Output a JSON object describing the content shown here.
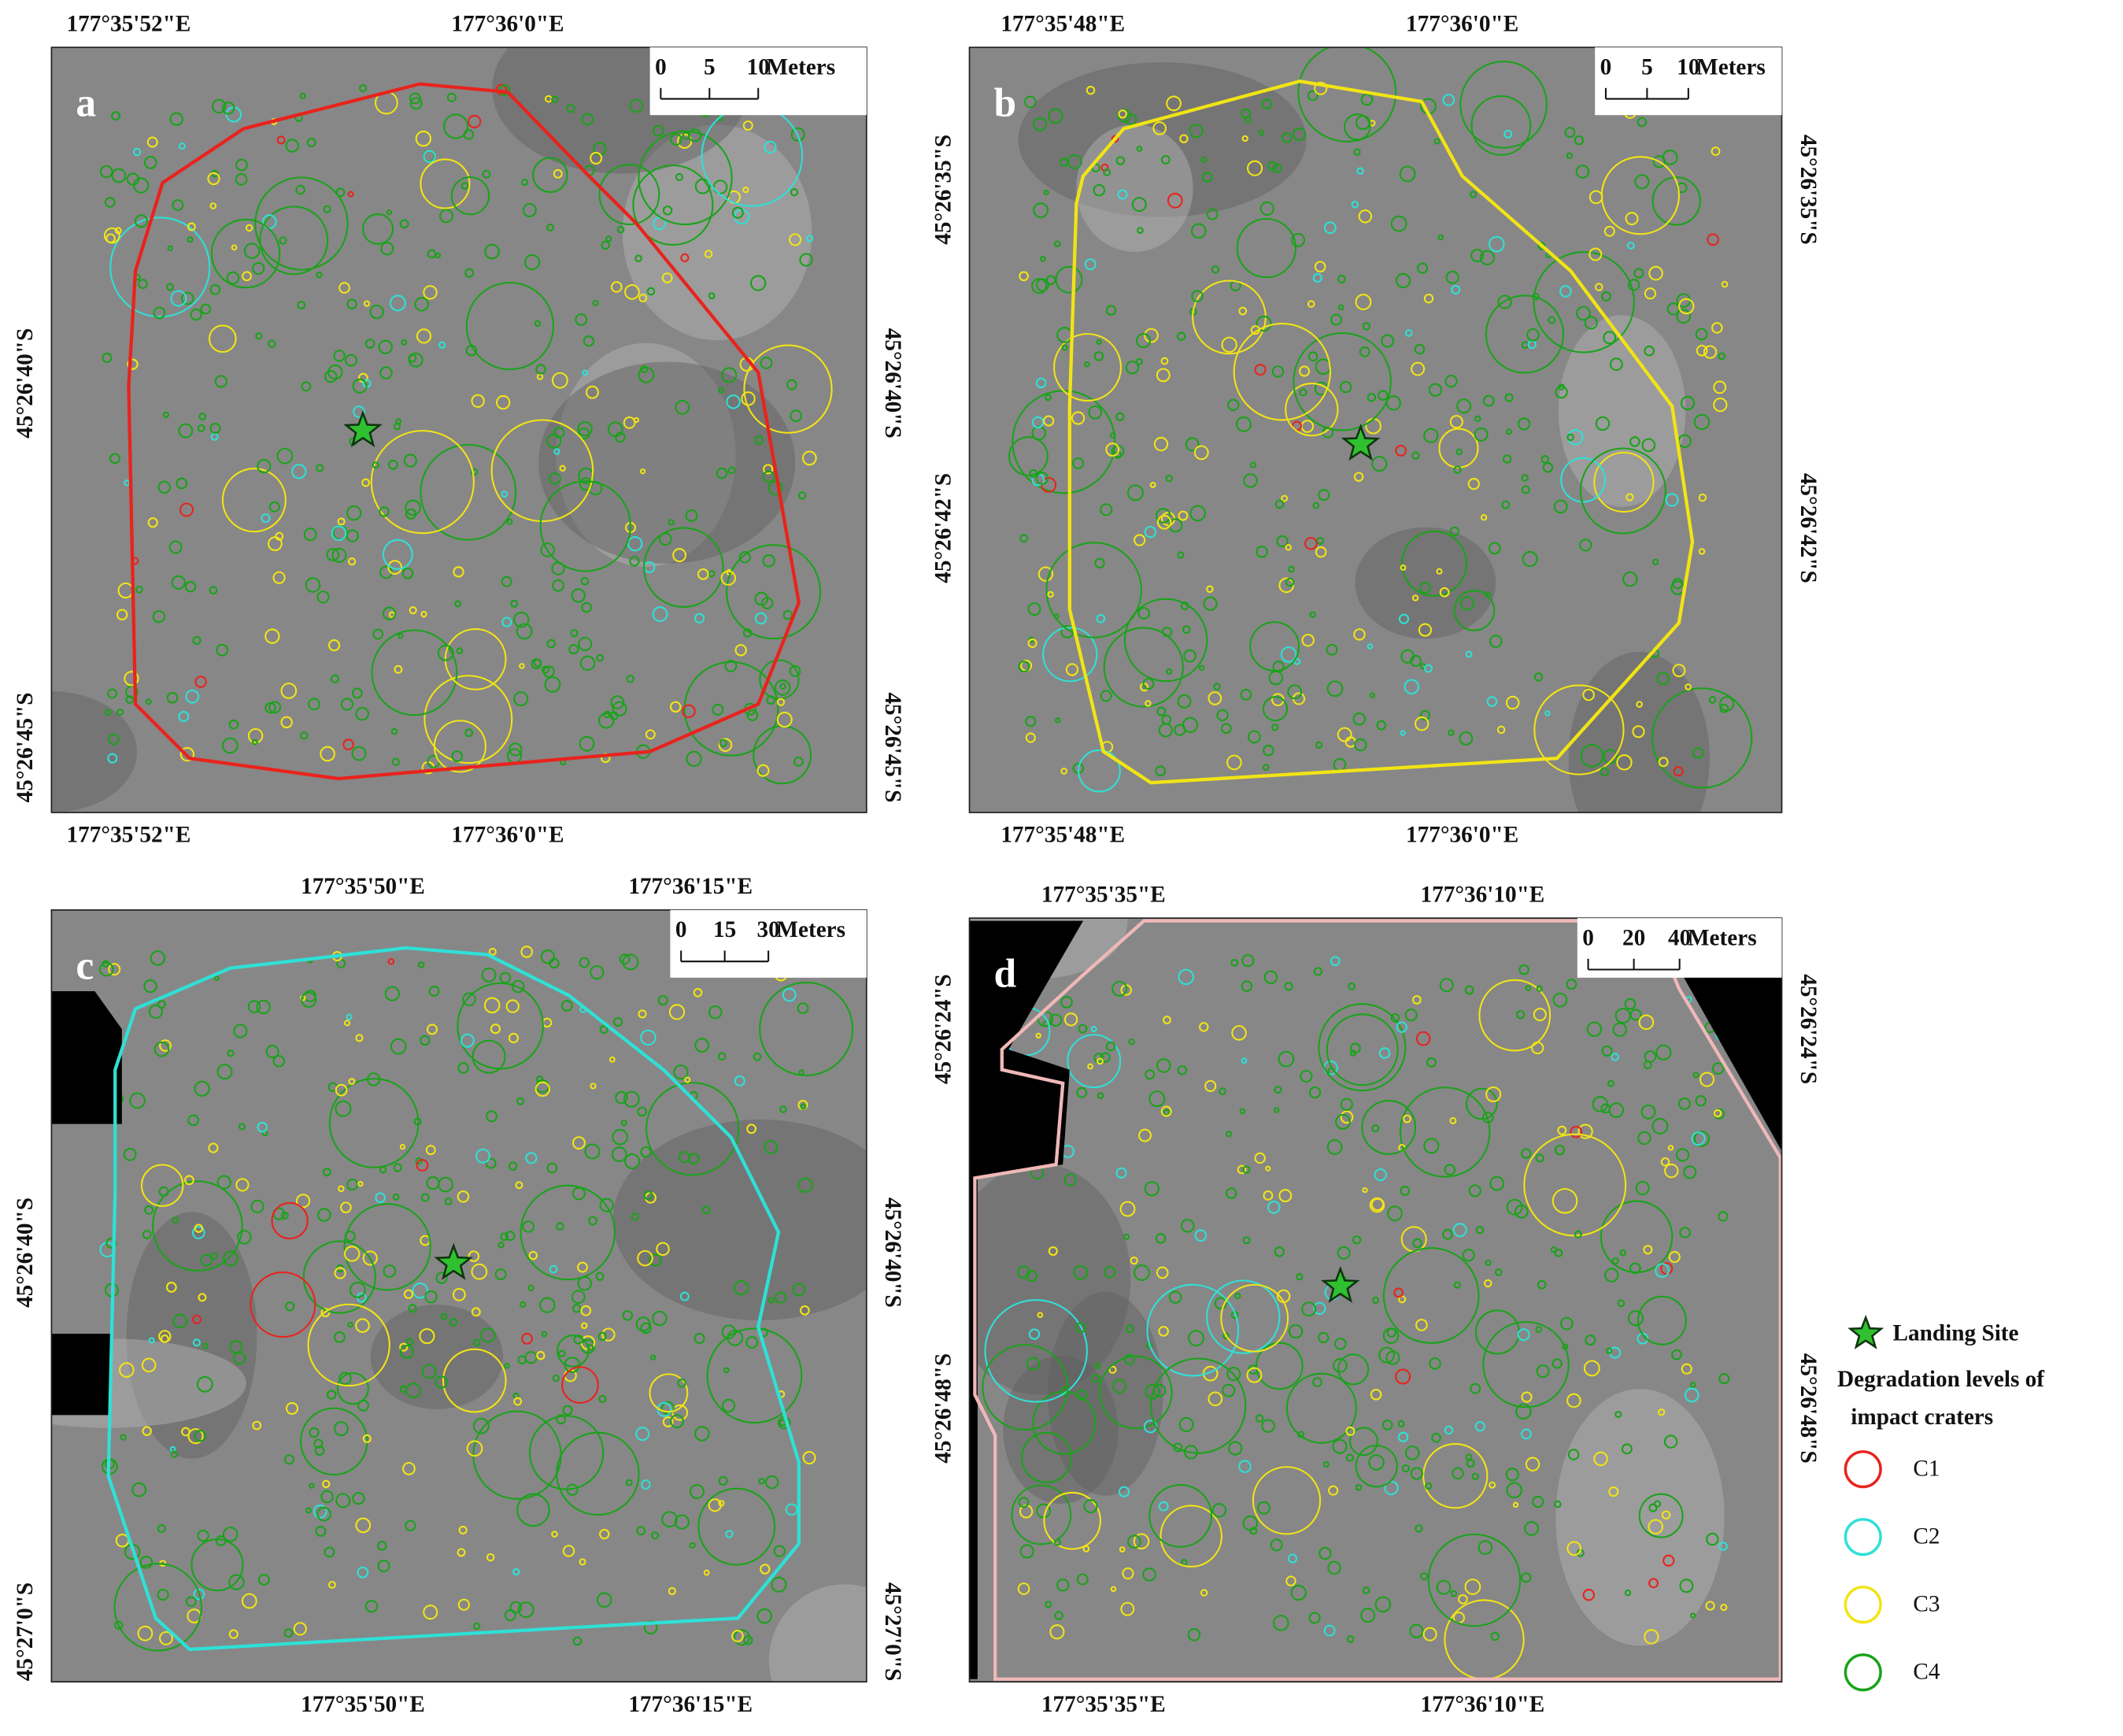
{
  "panels": [
    {
      "label": "a",
      "color": "#e8231d",
      "lon_labels": [
        "177°35'52\"E",
        "177°36'0\"E"
      ],
      "lat_labels": [
        "45°26'40\"S",
        "45°26'45\"S"
      ],
      "scale": {
        "ticks": [
          0,
          5,
          10
        ],
        "unit": "Meters"
      }
    },
    {
      "label": "b",
      "color": "#f2e414",
      "lon_labels": [
        "177°35'48\"E",
        "177°36'0\"E"
      ],
      "lat_labels": [
        "45°26'35\"S",
        "45°26'42\"S"
      ],
      "scale": {
        "ticks": [
          0,
          5,
          10
        ],
        "unit": "Meters"
      }
    },
    {
      "label": "c",
      "color": "#2fe0d6",
      "lon_labels": [
        "177°35'50\"E",
        "177°36'15\"E"
      ],
      "lat_labels": [
        "45°26'40\"S",
        "45°27'0\"S"
      ],
      "scale": {
        "ticks": [
          0,
          15,
          30
        ],
        "unit": "Meters"
      }
    },
    {
      "label": "d",
      "color": "#f0b8b8",
      "lon_labels": [
        "177°35'35\"E",
        "177°36'10\"E"
      ],
      "lat_labels": [
        "45°26'24\"S",
        "45°26'48\"S"
      ],
      "scale": {
        "ticks": [
          0,
          20,
          40
        ],
        "unit": "Meters"
      }
    }
  ],
  "legend": {
    "landing_site": "Landing Site",
    "title_lines": [
      "Degradation levels of",
      "impact craters"
    ],
    "levels": [
      {
        "name": "C1",
        "color": "#e8231d"
      },
      {
        "name": "C2",
        "color": "#2fe0d6"
      },
      {
        "name": "C3",
        "color": "#f2e414"
      },
      {
        "name": "C4",
        "color": "#19a319"
      }
    ]
  }
}
